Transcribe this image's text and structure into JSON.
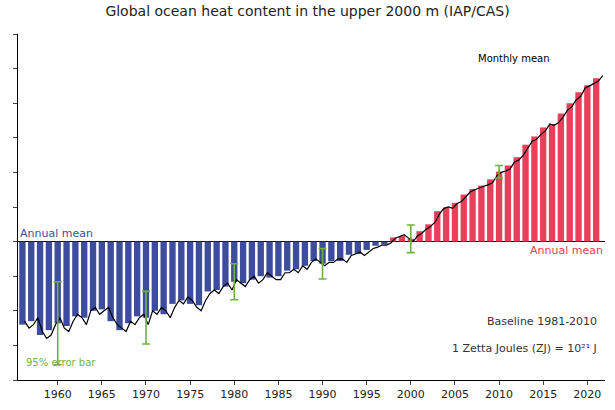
{
  "chart_data": {
    "type": "bar",
    "title": "Global ocean heat content in the upper 2000 m (IAP/CAS)",
    "xlim": [
      1955.5,
      2022
    ],
    "xticks": [
      1960,
      1965,
      1970,
      1975,
      1980,
      1985,
      1990,
      1995,
      2000,
      2005,
      2010,
      2015,
      2020
    ],
    "ylim": [
      -200,
      300
    ],
    "yticks": [
      -200,
      -150,
      -100,
      -50,
      0,
      50,
      100,
      150,
      200,
      250,
      300
    ],
    "tick_labels": "x",
    "series": [
      {
        "name": "Annual mean",
        "type": "bar",
        "color": "#3d4c9e",
        "x": [
          1956,
          1957,
          1958,
          1959,
          1960,
          1961,
          1962,
          1963,
          1964,
          1965,
          1966,
          1967,
          1968,
          1969,
          1970,
          1971,
          1972,
          1973,
          1974,
          1975,
          1976,
          1977,
          1978,
          1979,
          1980,
          1981,
          1982,
          1983,
          1984,
          1985,
          1986,
          1987,
          1988,
          1989,
          1990,
          1991,
          1992,
          1993,
          1994,
          1995,
          1996,
          1997
        ],
        "values": [
          -120,
          -115,
          -135,
          -128,
          -118,
          -122,
          -108,
          -110,
          -100,
          -98,
          -115,
          -128,
          -118,
          -108,
          -110,
          -100,
          -105,
          -90,
          -85,
          -90,
          -92,
          -72,
          -70,
          -65,
          -58,
          -60,
          -55,
          -50,
          -52,
          -50,
          -42,
          -40,
          -35,
          -28,
          -32,
          -28,
          -28,
          -19,
          -18,
          -12,
          -6,
          -4
        ]
      },
      {
        "name": "Annual mean",
        "type": "bar",
        "color": "#e8405a",
        "x": [
          1998,
          1999,
          2000,
          2001,
          2002,
          2003,
          2004,
          2005,
          2006,
          2007,
          2008,
          2009,
          2010,
          2011,
          2012,
          2013,
          2014,
          2015,
          2016,
          2017,
          2018,
          2019,
          2020,
          2021
        ],
        "values": [
          6,
          8,
          4,
          15,
          25,
          44,
          49,
          56,
          68,
          76,
          81,
          90,
          101,
          110,
          122,
          140,
          152,
          165,
          170,
          185,
          200,
          216,
          226,
          236
        ]
      },
      {
        "name": "Monthly mean",
        "type": "line",
        "color": "#000000",
        "x": [
          1956.25,
          1956.75,
          1957.25,
          1957.75,
          1958.25,
          1958.75,
          1959.25,
          1959.75,
          1960.25,
          1960.75,
          1961.25,
          1961.75,
          1962.25,
          1962.75,
          1963.25,
          1963.75,
          1964.25,
          1964.75,
          1965.25,
          1965.75,
          1966.25,
          1966.75,
          1967.25,
          1967.75,
          1968.25,
          1968.75,
          1969.25,
          1969.75,
          1970.25,
          1970.75,
          1971.25,
          1971.75,
          1972.25,
          1972.75,
          1973.25,
          1973.75,
          1974.25,
          1974.75,
          1975.25,
          1975.75,
          1976.25,
          1976.75,
          1977.25,
          1977.75,
          1978.25,
          1978.75,
          1979.25,
          1979.75,
          1980.25,
          1980.75,
          1981.25,
          1981.75,
          1982.25,
          1982.75,
          1983.25,
          1983.75,
          1984.25,
          1984.75,
          1985.25,
          1985.75,
          1986.25,
          1986.75,
          1987.25,
          1987.75,
          1988.25,
          1988.75,
          1989.25,
          1989.75,
          1990.25,
          1990.75,
          1991.25,
          1991.75,
          1992.25,
          1992.75,
          1993.25,
          1993.75,
          1994.25,
          1994.75,
          1995.25,
          1995.75,
          1996.25,
          1996.75,
          1997.25,
          1997.75,
          1998.25,
          1998.75,
          1999.25,
          1999.75,
          2000.25,
          2000.75,
          2001.25,
          2001.75,
          2002.25,
          2002.75,
          2003.25,
          2003.75,
          2004.25,
          2004.75,
          2005.25,
          2005.75,
          2006.25,
          2006.75,
          2007.25,
          2007.75,
          2008.25,
          2008.75,
          2009.25,
          2009.75,
          2010.25,
          2010.75,
          2011.25,
          2011.75,
          2012.25,
          2012.75,
          2013.25,
          2013.75,
          2014.25,
          2014.75,
          2015.25,
          2015.75,
          2016.25,
          2016.75,
          2017.25,
          2017.75,
          2018.25,
          2018.75,
          2019.25,
          2019.75,
          2020.25,
          2020.75,
          2021.25,
          2021.75
        ],
        "values": [
          -115,
          -125,
          -120,
          -110,
          -130,
          -140,
          -135,
          -120,
          -110,
          -125,
          -130,
          -115,
          -105,
          -110,
          -120,
          -100,
          -95,
          -105,
          -100,
          -95,
          -110,
          -120,
          -125,
          -130,
          -115,
          -120,
          -110,
          -105,
          -120,
          -100,
          -105,
          -95,
          -100,
          -110,
          -95,
          -85,
          -90,
          -80,
          -85,
          -95,
          -100,
          -85,
          -75,
          -70,
          -75,
          -65,
          -60,
          -70,
          -55,
          -60,
          -65,
          -55,
          -50,
          -60,
          -55,
          -45,
          -50,
          -55,
          -55,
          -45,
          -45,
          -40,
          -45,
          -35,
          -40,
          -30,
          -25,
          -30,
          -35,
          -30,
          -30,
          -25,
          -25,
          -30,
          -20,
          -18,
          -15,
          -20,
          -15,
          -10,
          -8,
          -5,
          -5,
          -2,
          5,
          8,
          10,
          5,
          0,
          8,
          12,
          18,
          22,
          28,
          40,
          48,
          50,
          48,
          55,
          58,
          65,
          72,
          75,
          78,
          80,
          82,
          85,
          95,
          100,
          102,
          105,
          115,
          118,
          125,
          135,
          145,
          148,
          155,
          160,
          170,
          168,
          172,
          180,
          190,
          195,
          205,
          210,
          222,
          225,
          228,
          232,
          240
        ]
      },
      {
        "name": "95% error bar",
        "type": "errorbar",
        "color": "#6cb33f",
        "x": [
          1960,
          1970,
          1980,
          1990,
          2000,
          2010
        ],
        "values": [
          -118,
          -110,
          -58,
          -32,
          4,
          101
        ],
        "error": [
          60,
          38,
          26,
          22,
          20,
          9
        ]
      }
    ],
    "annotations": [
      "Baseline 1981-2010",
      "1 Zetta Joules (ZJ) = 10²¹ J"
    ]
  }
}
